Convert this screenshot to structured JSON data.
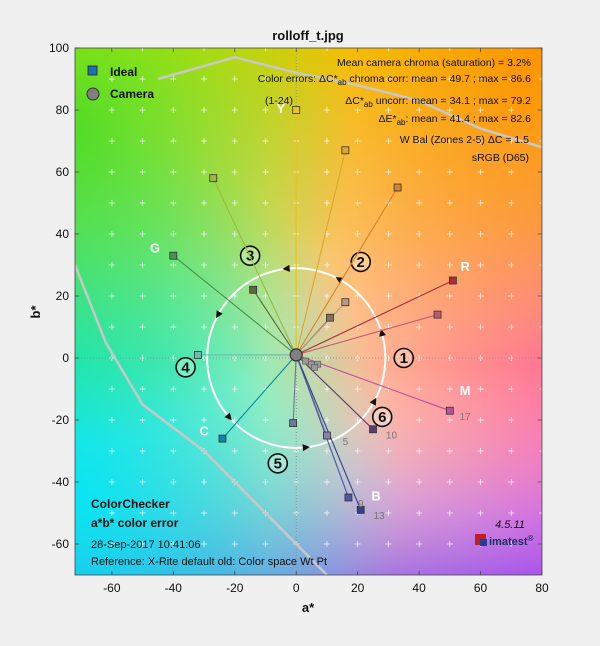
{
  "title": "rolloff_t.jpg",
  "annotations": {
    "mean_chroma": "Mean camera chroma (saturation) = 3.2%",
    "err1_prefix": "Color errors: ",
    "err1_sym": "ΔC*",
    "err1_sub": "ab",
    "err1_text": " chroma corr:  mean = 49.7 ;  max = 86.6",
    "err2_sym": "ΔC*",
    "err2_sub": "ab",
    "err2_text": " uncorr:  mean = 34.1 ;  max = 79.2",
    "err3_sym": "ΔE*",
    "err3_sub": "ab",
    "err3_text": ":  mean = 41.4 ;  max = 82.6",
    "range": "(1-24)",
    "wbal": "W Bal (Zones 2-5) ΔC = 1.5",
    "colorspace": "sRGB (D65)"
  },
  "info": {
    "line1": "ColorChecker",
    "line2": "a*b* color error",
    "date": "28-Sep-2017 10:41:06",
    "reference": "Reference: X-Rite default old: Color space Wt Pt"
  },
  "branding": {
    "version": "4.5.11",
    "name": "imatest",
    "mark": "®"
  },
  "colors": {
    "camera_point": "#808080",
    "ideal_edge": "#333333"
  },
  "chart_data": {
    "type": "scatter",
    "title": "rolloff_t.jpg",
    "xlabel": "a*",
    "ylabel": "b*",
    "xlim": [
      -72,
      80
    ],
    "ylim": [
      -70,
      100
    ],
    "xticks": [
      -60,
      -40,
      -20,
      0,
      20,
      40,
      60,
      80
    ],
    "yticks": [
      -60,
      -40,
      -20,
      0,
      20,
      40,
      60,
      80,
      100
    ],
    "grid": true,
    "legend": {
      "position": "top-left",
      "entries": [
        "Ideal",
        "Camera"
      ]
    },
    "camera_point": [
      0,
      1
    ],
    "ideal_points": [
      {
        "a": 11,
        "b": 13,
        "color": "#8a6e5c"
      },
      {
        "a": 16,
        "b": 18,
        "color": "#c09880"
      },
      {
        "a": -1,
        "b": -21,
        "color": "#6a7a98"
      },
      {
        "a": -14,
        "b": 22,
        "color": "#5a6a3c"
      },
      {
        "a": 10,
        "b": -25,
        "color": "#8882b0"
      },
      {
        "a": -32,
        "b": 1,
        "color": "#68bcb0"
      },
      {
        "a": 33,
        "b": 55,
        "color": "#d68230"
      },
      {
        "a": 17,
        "b": -45,
        "color": "#4a5aa2"
      },
      {
        "a": 46,
        "b": 14,
        "color": "#c4586a"
      },
      {
        "a": 25,
        "b": -23,
        "color": "#5c3c6c"
      },
      {
        "a": -27,
        "b": 58,
        "color": "#9cb840"
      },
      {
        "a": 16,
        "b": 67,
        "color": "#e0a430"
      },
      {
        "a": 21,
        "b": -49,
        "color": "#34408a"
      },
      {
        "a": -40,
        "b": 33,
        "color": "#48944a"
      },
      {
        "a": 51,
        "b": 25,
        "color": "#b02c38"
      },
      {
        "a": 0,
        "b": 80,
        "color": "#e8c428"
      },
      {
        "a": 50,
        "b": -17,
        "color": "#b8549a"
      },
      {
        "a": -24,
        "b": -26,
        "color": "#0a88a4"
      },
      {
        "a": 0,
        "b": 0,
        "color": "#f2f2f2"
      },
      {
        "a": 0,
        "b": 0,
        "color": "#c8c8c8"
      },
      {
        "a": 0,
        "b": 0,
        "color": "#a0a0a0"
      },
      {
        "a": 0,
        "b": 0,
        "color": "#7a7a7a"
      },
      {
        "a": 0,
        "b": 0,
        "color": "#555555"
      },
      {
        "a": 0,
        "b": 0,
        "color": "#333333"
      }
    ],
    "patch_labels": [
      {
        "text": "Y",
        "a": -5,
        "b": 79
      },
      {
        "text": "G",
        "a": -46,
        "b": 34
      },
      {
        "text": "R",
        "a": 55,
        "b": 28
      },
      {
        "text": "M",
        "a": 55,
        "b": -12
      },
      {
        "text": "C",
        "a": -30,
        "b": -25
      },
      {
        "text": "B",
        "a": 26,
        "b": -46
      }
    ],
    "patch_numbers": [
      {
        "text": "17",
        "a": 55,
        "b": -20
      },
      {
        "text": "10",
        "a": 31,
        "b": -26
      },
      {
        "text": "5",
        "a": 16,
        "b": -28
      },
      {
        "text": "9",
        "a": 21,
        "b": -48
      },
      {
        "text": "13",
        "a": 27,
        "b": -52
      }
    ],
    "zones": [
      {
        "label": "1",
        "a": 35,
        "b": 0
      },
      {
        "label": "2",
        "a": 21,
        "b": 31
      },
      {
        "label": "3",
        "a": -15,
        "b": 33
      },
      {
        "label": "4",
        "a": -36,
        "b": -3
      },
      {
        "label": "5",
        "a": -6,
        "b": -34
      },
      {
        "label": "6",
        "a": 28,
        "b": -19
      }
    ],
    "zone_circle": {
      "center": [
        0,
        0
      ],
      "radius": 29
    },
    "zone_arrows_deg": [
      15,
      60,
      95,
      150,
      220,
      275,
      330
    ],
    "gamut_boundary": [
      [
        -72,
        30
      ],
      [
        -62,
        5
      ],
      [
        -50,
        -15
      ],
      [
        -30,
        -30
      ],
      [
        -15,
        -45
      ],
      [
        0,
        -60
      ],
      [
        10,
        -70
      ]
    ],
    "gamut_boundary_top": [
      [
        -45,
        90
      ],
      [
        -20,
        97
      ],
      [
        0,
        92
      ],
      [
        20,
        88
      ],
      [
        40,
        83
      ],
      [
        60,
        74
      ],
      [
        80,
        68
      ]
    ]
  }
}
